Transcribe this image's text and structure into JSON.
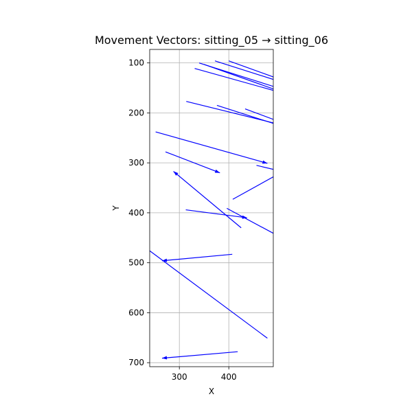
{
  "chart_data": {
    "type": "quiver",
    "title": "Movement Vectors: sitting_05 → sitting_06",
    "xlabel": "X",
    "ylabel": "Y",
    "xlim": [
      240,
      490
    ],
    "ylim": [
      708,
      73
    ],
    "y_inverted": true,
    "grid": true,
    "x_ticks": [
      300,
      400
    ],
    "y_ticks": [
      100,
      200,
      300,
      400,
      500,
      600,
      700
    ],
    "color": "#0000ff",
    "vectors": [
      {
        "x0": 372,
        "y0": 96,
        "x1": 490,
        "y1": 133,
        "arrow": false
      },
      {
        "x0": 400,
        "y0": 96,
        "x1": 490,
        "y1": 128,
        "arrow": false
      },
      {
        "x0": 340,
        "y0": 100,
        "x1": 490,
        "y1": 147,
        "arrow": false
      },
      {
        "x0": 350,
        "y0": 103,
        "x1": 490,
        "y1": 152,
        "arrow": false
      },
      {
        "x0": 331,
        "y0": 111,
        "x1": 490,
        "y1": 155,
        "arrow": false
      },
      {
        "x0": 433,
        "y0": 192,
        "x1": 490,
        "y1": 213,
        "arrow": false
      },
      {
        "x0": 314,
        "y0": 177,
        "x1": 490,
        "y1": 220,
        "arrow": false
      },
      {
        "x0": 376,
        "y0": 185,
        "x1": 490,
        "y1": 221,
        "arrow": false
      },
      {
        "x0": 252,
        "y0": 238,
        "x1": 478,
        "y1": 301,
        "arrow": true
      },
      {
        "x0": 456,
        "y0": 305,
        "x1": 490,
        "y1": 313,
        "arrow": false
      },
      {
        "x0": 272,
        "y0": 278,
        "x1": 382,
        "y1": 320,
        "arrow": true
      },
      {
        "x0": 408,
        "y0": 373,
        "x1": 490,
        "y1": 328,
        "arrow": false
      },
      {
        "x0": 425,
        "y0": 430,
        "x1": 288,
        "y1": 317,
        "arrow": true
      },
      {
        "x0": 313,
        "y0": 394,
        "x1": 437,
        "y1": 410,
        "arrow": true
      },
      {
        "x0": 396,
        "y0": 391,
        "x1": 490,
        "y1": 441,
        "arrow": false
      },
      {
        "x0": 407,
        "y0": 483,
        "x1": 265,
        "y1": 496,
        "arrow": true
      },
      {
        "x0": 240,
        "y0": 476,
        "x1": 478,
        "y1": 651,
        "arrow": false
      },
      {
        "x0": 418,
        "y0": 678,
        "x1": 265,
        "y1": 691,
        "arrow": true
      }
    ]
  }
}
